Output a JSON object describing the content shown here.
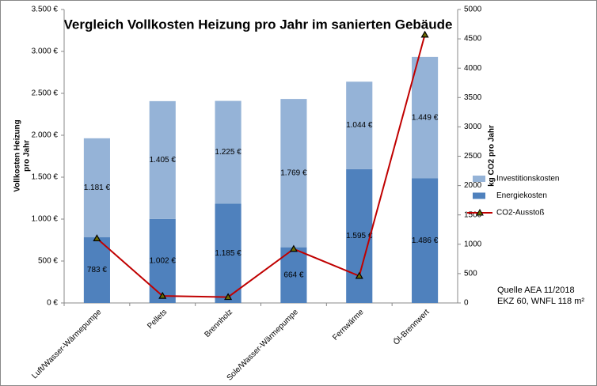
{
  "chart_data": {
    "type": "bar",
    "title": "Vergleich Vollkosten Heizung pro Jahr im sanierten Gebäude",
    "ylabel": [
      "Vollkosten Heizung",
      "pro Jahr"
    ],
    "y2label": "kg CO2 pro Jahr",
    "annotations": [
      "Quelle AEA 11/2018",
      "EKZ 60, WNFL 118 m²"
    ],
    "categories": [
      "Luft/Wasser-Wärmepumpe",
      "Pellets",
      "Brennholz",
      "Sole/Wasser-Wärmepumpe",
      "Fernwärme",
      "Öl-Brennwert"
    ],
    "stacked": true,
    "series": [
      {
        "name": "Investitionskosten",
        "color": "#95b3d7",
        "values": [
          1181,
          1405,
          1225,
          1769,
          1044,
          1449
        ],
        "value_labels": [
          "1.181 €",
          "1.405 €",
          "1.225 €",
          "1.769 €",
          "1.044 €",
          "1.449 €"
        ]
      },
      {
        "name": "Energiekosten",
        "color": "#4f81bd",
        "values": [
          783,
          1002,
          1185,
          664,
          1595,
          1486
        ],
        "value_labels": [
          "783 €",
          "1.002 €",
          "1.185 €",
          "664 €",
          "1.595 €",
          "1.486 €"
        ]
      },
      {
        "name": "CO2-Ausstoß",
        "color": "#c00000",
        "type": "line",
        "axis": "y2",
        "values": [
          1100,
          120,
          100,
          920,
          460,
          4570
        ]
      }
    ],
    "ylim": [
      0,
      3500
    ],
    "yticks": [
      {
        "value": 0,
        "label": "0 €"
      },
      {
        "value": 500,
        "label": "500 €"
      },
      {
        "value": 1000,
        "label": "1.000 €"
      },
      {
        "value": 1500,
        "label": "1.500 €"
      },
      {
        "value": 2000,
        "label": "2.000 €"
      },
      {
        "value": 2500,
        "label": "2.500 €"
      },
      {
        "value": 3000,
        "label": "3.000 €"
      },
      {
        "value": 3500,
        "label": "3.500 €"
      }
    ],
    "y2lim": [
      0,
      5000
    ],
    "y2ticks": [
      0,
      500,
      1000,
      1500,
      2000,
      2500,
      3000,
      3500,
      4000,
      4500,
      5000
    ],
    "legend": "right"
  }
}
